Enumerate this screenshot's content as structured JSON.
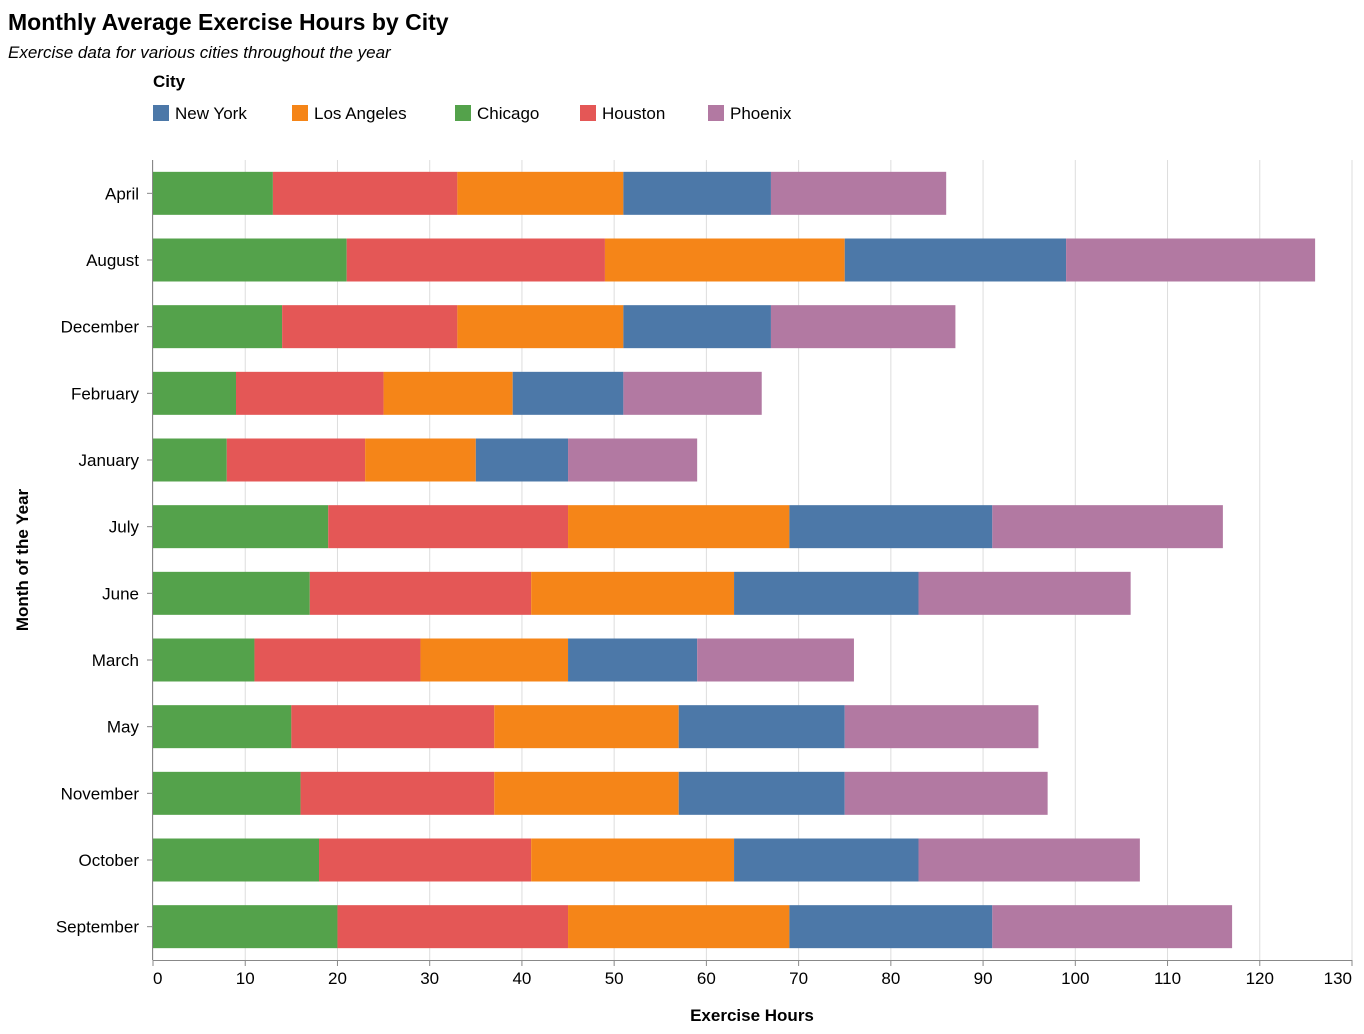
{
  "chart_data": {
    "type": "bar",
    "orientation": "horizontal",
    "stacked": true,
    "title": "Monthly Average Exercise Hours by City",
    "subtitle": "Exercise data for various cities throughout the year",
    "xlabel": "Exercise Hours",
    "ylabel": "Month of the Year",
    "xlim": [
      0,
      130
    ],
    "xticks": [
      0,
      10,
      20,
      30,
      40,
      50,
      60,
      70,
      80,
      90,
      100,
      110,
      120,
      130
    ],
    "grid": true,
    "legend": {
      "title": "City",
      "placement": "top",
      "entries": [
        {
          "name": "New York",
          "color": "#4c78a8"
        },
        {
          "name": "Los Angeles",
          "color": "#f58518"
        },
        {
          "name": "Chicago",
          "color": "#54a24b"
        },
        {
          "name": "Houston",
          "color": "#e45756"
        },
        {
          "name": "Phoenix",
          "color": "#b279a2"
        }
      ]
    },
    "stack_order": [
      "Chicago",
      "Houston",
      "Los Angeles",
      "New York",
      "Phoenix"
    ],
    "categories": [
      "April",
      "August",
      "December",
      "February",
      "January",
      "July",
      "June",
      "March",
      "May",
      "November",
      "October",
      "September"
    ],
    "series": [
      {
        "name": "Chicago",
        "color": "#54a24b",
        "values": [
          13,
          21,
          14,
          9,
          8,
          19,
          17,
          11,
          15,
          16,
          18,
          20
        ]
      },
      {
        "name": "Houston",
        "color": "#e45756",
        "values": [
          20,
          28,
          19,
          16,
          15,
          26,
          24,
          18,
          22,
          21,
          23,
          25
        ]
      },
      {
        "name": "Los Angeles",
        "color": "#f58518",
        "values": [
          18,
          26,
          18,
          14,
          12,
          24,
          22,
          16,
          20,
          20,
          22,
          24
        ]
      },
      {
        "name": "New York",
        "color": "#4c78a8",
        "values": [
          16,
          24,
          16,
          12,
          10,
          22,
          20,
          14,
          18,
          18,
          20,
          22
        ]
      },
      {
        "name": "Phoenix",
        "color": "#b279a2",
        "values": [
          19,
          27,
          20,
          15,
          14,
          25,
          23,
          17,
          21,
          22,
          24,
          26
        ]
      }
    ]
  }
}
